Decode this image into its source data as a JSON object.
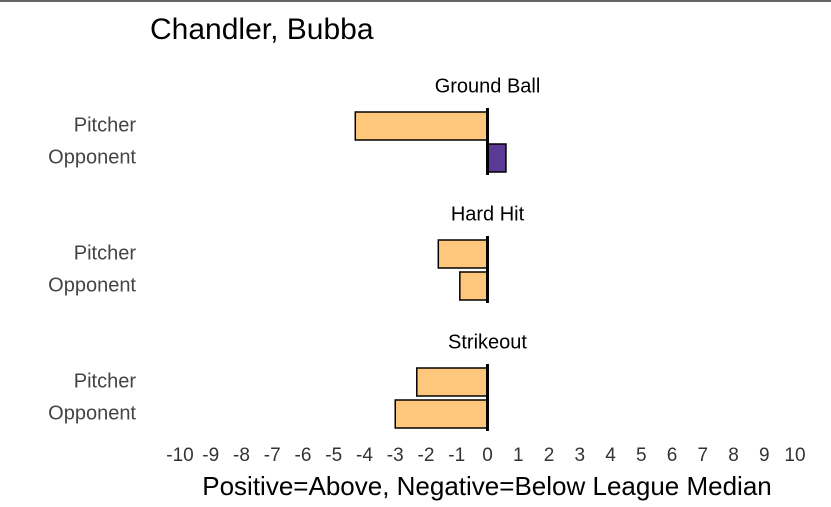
{
  "chart_data": {
    "type": "bar",
    "title": "Chandler, Bubba",
    "xlabel": "Positive=Above, Negative=Below League Median",
    "xlim": [
      -10,
      10
    ],
    "xticks": [
      -10,
      -9,
      -8,
      -7,
      -6,
      -5,
      -4,
      -3,
      -2,
      -1,
      0,
      1,
      2,
      3,
      4,
      5,
      6,
      7,
      8,
      9,
      10
    ],
    "facets": [
      {
        "title": "Ground Ball",
        "categories": [
          "Pitcher",
          "Opponent"
        ],
        "values": [
          -4.3,
          0.6
        ],
        "colors": [
          "#fec77c",
          "#5b3a96"
        ]
      },
      {
        "title": "Hard Hit",
        "categories": [
          "Pitcher",
          "Opponent"
        ],
        "values": [
          -1.6,
          -0.9
        ],
        "colors": [
          "#fec77c",
          "#fec77c"
        ]
      },
      {
        "title": "Strikeout",
        "categories": [
          "Pitcher",
          "Opponent"
        ],
        "values": [
          -2.3,
          -3.0
        ],
        "colors": [
          "#fec77c",
          "#fec77c"
        ]
      }
    ]
  }
}
